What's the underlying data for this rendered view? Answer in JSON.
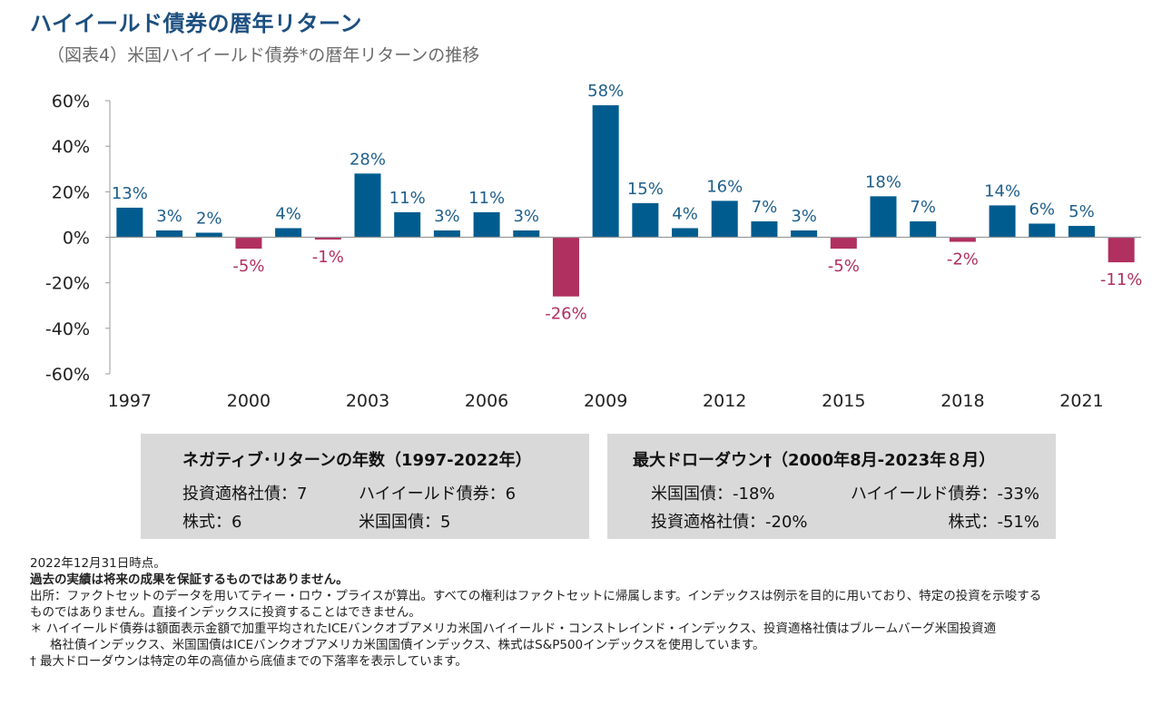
{
  "title": "ハイイールド債券の暦年リターン",
  "subtitle": "（図表4）米国ハイイールド債券*の暦年リターンの推移",
  "chart_data": {
    "type": "bar",
    "categories": [
      "1997",
      "1998",
      "1999",
      "2000",
      "2001",
      "2002",
      "2003",
      "2004",
      "2005",
      "2006",
      "2007",
      "2008",
      "2009",
      "2010",
      "2011",
      "2012",
      "2013",
      "2014",
      "2015",
      "2016",
      "2017",
      "2018",
      "2019",
      "2020",
      "2021",
      "2022"
    ],
    "values": [
      13,
      3,
      2,
      -5,
      4,
      -1,
      28,
      11,
      3,
      11,
      3,
      -26,
      58,
      15,
      4,
      16,
      7,
      3,
      -5,
      18,
      7,
      -2,
      14,
      6,
      5,
      -11
    ],
    "data_labels": [
      "13%",
      "3%",
      "2%",
      "-5%",
      "4%",
      "-1%",
      "28%",
      "11%",
      "3%",
      "11%",
      "3%",
      "-26%",
      "58%",
      "15%",
      "4%",
      "16%",
      "7%",
      "3%",
      "-5%",
      "18%",
      "7%",
      "-2%",
      "14%",
      "6%",
      "5%",
      "-11%"
    ],
    "x_tick_labels": [
      "1997",
      "2000",
      "2003",
      "2006",
      "2009",
      "2012",
      "2015",
      "2018",
      "2021"
    ],
    "y_ticks": [
      "60%",
      "40%",
      "20%",
      "0%",
      "-20%",
      "-40%",
      "-60%"
    ],
    "ylim": [
      -60,
      60
    ],
    "colors": {
      "positive": "#005c8f",
      "negative": "#b03060",
      "axis": "#9a9a9a",
      "label_positive": "#1f5f8b",
      "label_negative": "#b03060"
    },
    "grid": false,
    "legend": "none"
  },
  "box1": {
    "title": "ネガティブ･リターンの年数（1997-2022年）",
    "items": [
      "投資適格社債：7",
      "ハイイールド債券：6",
      "株式：6",
      "米国国債：5"
    ]
  },
  "box2": {
    "title": "最大ドローダウン†（2000年8月-2023年８月）",
    "items": [
      "米国国債：-18%",
      "ハイイールド債券：-33%",
      "投資適格社債：-20%",
      "株式：-51%"
    ]
  },
  "notes": {
    "date": "2022年12月31日時点。",
    "disclaimer": "過去の実績は将来の成果を保証するものではありません。",
    "source1": "出所：ファクトセットのデータを用いてティー・ロウ・プライスが算出。すべての権利はファクトセットに帰属します。インデックスは例示を目的に用いており、特定の投資を示唆する",
    "source2": "ものではありません。直接インデックスに投資することはできません。",
    "asterisk1": "＊  ハイイールド債券は額面表示金額で加重平均されたICEバンクオブアメリカ米国ハイイールド・コンストレインド・インデックス、投資適格社債はブルームバーグ米国投資適",
    "asterisk2": "格社債インデックス、米国国債はICEバンクオブアメリカ米国国債インデックス、株式はS&P500インデックスを使用しています。",
    "dagger": "†  最大ドローダウンは特定の年の高値から底値までの下落率を表示しています。"
  }
}
